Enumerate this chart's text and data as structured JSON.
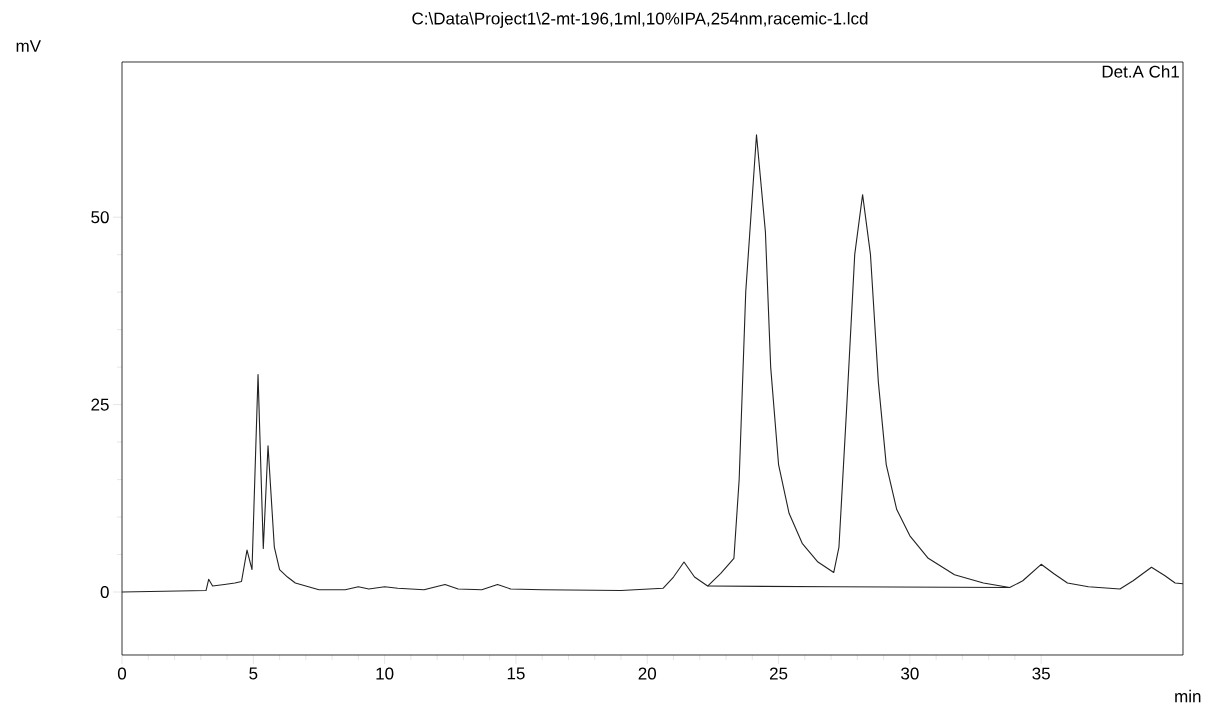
{
  "chart_data": {
    "type": "line",
    "title": "C:\\Data\\Project1\\2-mt-196,1ml,10%IPA,254nm,racemic-1.lcd",
    "xlabel": "min",
    "ylabel": "mV",
    "annotations": [
      "Det.A Ch1"
    ],
    "xlim": [
      0,
      40.4
    ],
    "ylim": [
      -8.4,
      70.7
    ],
    "xticks": [
      0,
      5,
      10,
      15,
      20,
      25,
      30,
      35
    ],
    "yticks": [
      0,
      25,
      50
    ],
    "series": [
      {
        "color": "#222222",
        "x": [
          0,
          3.2,
          3.3,
          3.45,
          3.9,
          4.3,
          4.55,
          4.76,
          4.95,
          5.18,
          5.38,
          5.56,
          5.8,
          6.0,
          6.3,
          6.6,
          7.2,
          7.5,
          8.5,
          9.0,
          9.4,
          10.0,
          10.5,
          11.5,
          12.3,
          12.8,
          13.7,
          14.3,
          14.8,
          16,
          19,
          20.6,
          21.0,
          21.4,
          21.8,
          22.3,
          22.8,
          23.1,
          23.3,
          23.5,
          23.75,
          24.16,
          24.5,
          24.7,
          25.0,
          25.4,
          25.9,
          26.5,
          27.1,
          27.3,
          27.6,
          27.9,
          28.2,
          28.5,
          28.8,
          29.1,
          29.5,
          30,
          30.7,
          31.7,
          32.8,
          33.8,
          34.3,
          35.0,
          35.5,
          36.0,
          36.8,
          38.0,
          38.5,
          39.2,
          39.7,
          40.1,
          40.4
        ],
        "values": [
          0,
          0.2,
          1.7,
          0.8,
          1.0,
          1.2,
          1.4,
          5.6,
          3.0,
          29,
          5.8,
          19.5,
          6,
          3,
          2,
          1.2,
          0.6,
          0.3,
          0.3,
          0.7,
          0.4,
          0.7,
          0.5,
          0.3,
          1,
          0.4,
          0.3,
          1,
          0.4,
          0.3,
          0.2,
          0.5,
          2,
          4,
          2,
          0.8,
          2.5,
          3.7,
          4.5,
          15,
          40,
          61,
          48,
          30,
          17,
          10.5,
          6.5,
          4,
          2.6,
          6,
          25,
          45,
          53,
          45,
          28,
          17,
          11,
          7.5,
          4.5,
          2.3,
          1.2,
          0.6,
          1.5,
          3.7,
          2.4,
          1.2,
          0.7,
          0.4,
          1.5,
          3.3,
          2.2,
          1.2,
          1.1
        ]
      },
      {
        "color": "#222222",
        "x": [
          22.3,
          27.1,
          33.8
        ],
        "values": [
          0.8,
          0.7,
          0.6
        ]
      }
    ]
  }
}
